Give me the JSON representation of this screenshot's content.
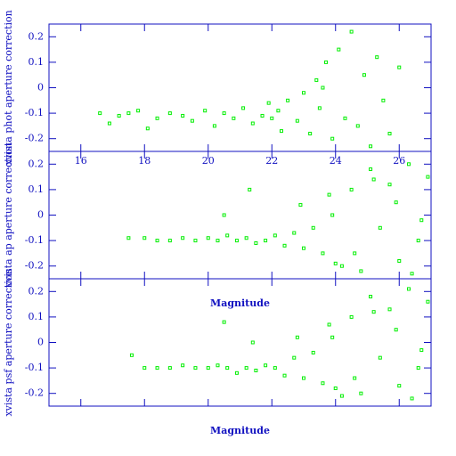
{
  "chart_data": [
    {
      "type": "scatter",
      "ylabel": "xvista phot aperture correction",
      "color": "#00ee00",
      "xlim": [
        15,
        27
      ],
      "ylim": [
        -0.25,
        0.25
      ],
      "xticks": [
        16,
        18,
        20,
        22,
        24,
        26
      ],
      "yticks": [
        -0.2,
        -0.1,
        0,
        0.1,
        0.2
      ],
      "x": [
        16.6,
        16.9,
        17.2,
        17.5,
        17.8,
        18.1,
        18.4,
        18.8,
        19.2,
        19.5,
        19.9,
        20.2,
        20.5,
        20.8,
        21.1,
        21.4,
        21.7,
        22.0,
        22.2,
        22.5,
        22.8,
        23.0,
        23.2,
        23.4,
        23.5,
        23.7,
        23.9,
        24.1,
        24.3,
        24.5,
        24.7,
        24.9,
        25.1,
        25.3,
        25.5,
        25.7,
        26.0,
        22.3,
        21.9,
        23.6
      ],
      "y": [
        -0.1,
        -0.14,
        -0.11,
        -0.1,
        -0.09,
        -0.16,
        -0.12,
        -0.1,
        -0.11,
        -0.13,
        -0.09,
        -0.15,
        -0.1,
        -0.12,
        -0.08,
        -0.14,
        -0.11,
        -0.12,
        -0.09,
        -0.05,
        -0.13,
        -0.02,
        -0.18,
        0.03,
        -0.08,
        0.1,
        -0.2,
        0.15,
        -0.12,
        0.22,
        -0.15,
        0.05,
        -0.23,
        0.12,
        -0.05,
        -0.18,
        0.08,
        -0.17,
        -0.06,
        0.0
      ]
    },
    {
      "type": "scatter",
      "ylabel": "xvista ap aperture correction",
      "xlabel": "Magnitude",
      "color": "#00ee00",
      "xlim": [
        15,
        27
      ],
      "ylim": [
        -0.25,
        0.25
      ],
      "xticks": [
        16,
        18,
        20,
        22,
        24,
        26
      ],
      "yticks": [
        -0.2,
        -0.1,
        0,
        0.1,
        0.2
      ],
      "x": [
        17.5,
        18.0,
        18.4,
        18.8,
        19.2,
        19.6,
        20.0,
        20.3,
        20.6,
        20.9,
        21.2,
        21.5,
        21.8,
        22.1,
        22.4,
        22.7,
        23.0,
        23.3,
        23.6,
        23.9,
        24.2,
        24.5,
        24.8,
        25.1,
        25.4,
        25.7,
        26.0,
        26.3,
        26.6,
        26.9,
        20.5,
        21.3,
        23.8,
        24.6,
        25.9,
        26.4,
        22.9,
        24.0,
        25.2,
        26.7
      ],
      "y": [
        -0.09,
        -0.09,
        -0.1,
        -0.1,
        -0.09,
        -0.1,
        -0.09,
        -0.1,
        -0.08,
        -0.1,
        -0.09,
        -0.11,
        -0.1,
        -0.08,
        -0.12,
        -0.07,
        -0.13,
        -0.05,
        -0.15,
        0.0,
        -0.2,
        0.1,
        -0.22,
        0.18,
        -0.05,
        0.12,
        -0.18,
        0.2,
        -0.1,
        0.15,
        0.0,
        0.1,
        0.08,
        -0.15,
        0.05,
        -0.23,
        0.04,
        -0.19,
        0.14,
        -0.02
      ]
    },
    {
      "type": "scatter",
      "ylabel": "xvista psf aperture correction",
      "xlabel": "Magnitude",
      "color": "#00ee00",
      "xlim": [
        15,
        27
      ],
      "ylim": [
        -0.25,
        0.25
      ],
      "xticks": [
        16,
        18,
        20,
        22,
        24,
        26
      ],
      "yticks": [
        -0.2,
        -0.1,
        0,
        0.1,
        0.2
      ],
      "x": [
        17.6,
        18.0,
        18.4,
        18.8,
        19.2,
        19.6,
        20.0,
        20.3,
        20.6,
        20.9,
        21.2,
        21.5,
        21.8,
        22.1,
        22.4,
        22.7,
        23.0,
        23.3,
        23.6,
        23.9,
        24.2,
        24.5,
        24.8,
        25.1,
        25.4,
        25.7,
        26.0,
        26.3,
        26.6,
        26.9,
        20.5,
        21.4,
        23.8,
        24.6,
        25.9,
        26.4,
        22.8,
        24.0,
        25.2,
        26.7
      ],
      "y": [
        -0.05,
        -0.1,
        -0.1,
        -0.1,
        -0.09,
        -0.1,
        -0.1,
        -0.09,
        -0.1,
        -0.12,
        -0.1,
        -0.11,
        -0.09,
        -0.1,
        -0.13,
        -0.06,
        -0.14,
        -0.04,
        -0.16,
        0.02,
        -0.21,
        0.1,
        -0.2,
        0.18,
        -0.06,
        0.13,
        -0.17,
        0.21,
        -0.1,
        0.16,
        0.08,
        0.0,
        0.07,
        -0.14,
        0.05,
        -0.22,
        0.02,
        -0.18,
        0.12,
        -0.03
      ]
    }
  ]
}
